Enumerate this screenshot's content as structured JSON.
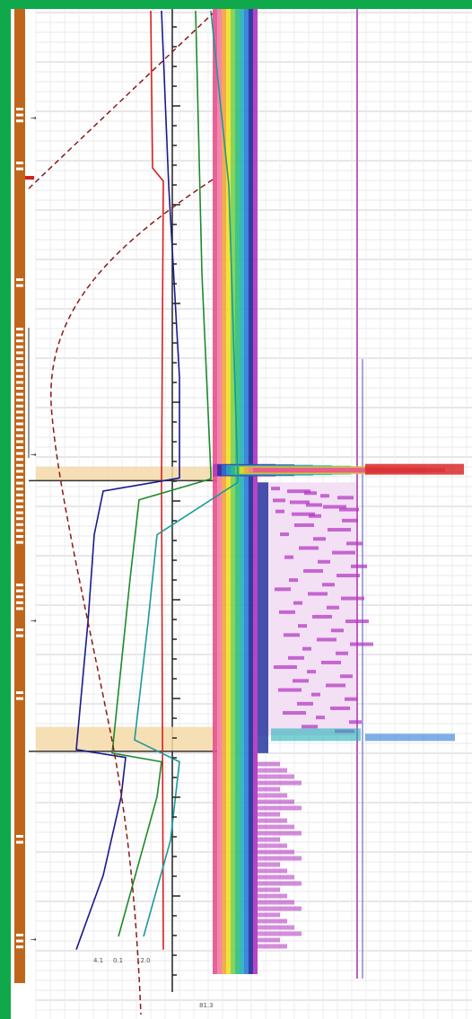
{
  "chart_data": {
    "type": "line",
    "title": "",
    "colors": {
      "background": "#0fa84a",
      "lithology": "#c0661a",
      "zone_highlight": "#f5d9a8",
      "curve_red": "#d62020",
      "curve_navy": "#1a1a8c",
      "curve_green": "#1f8a2a",
      "curve_teal": "#1a9a9a",
      "curve_dashed": "#8b1a1a",
      "vertical_line": "#c060c0"
    },
    "depth_range": [
      0,
      1100
    ],
    "highlighted_zones": [
      {
        "top": 522,
        "bottom": 538
      },
      {
        "top": 820,
        "bottom": 848
      }
    ],
    "series": [
      {
        "color_key": "curve_red",
        "depth": [
          0,
          180,
          195,
          540,
          1075
        ],
        "value": [
          128,
          130,
          142,
          140,
          142
        ]
      },
      {
        "color_key": "curve_navy",
        "depth": [
          0,
          200,
          420,
          535,
          550,
          600,
          700,
          846,
          855,
          900,
          990,
          1075
        ],
        "value": [
          140,
          148,
          160,
          160,
          75,
          65,
          58,
          45,
          100,
          95,
          75,
          45
        ]
      },
      {
        "color_key": "curve_green",
        "depth": [
          0,
          300,
          530,
          536,
          560,
          650,
          850,
          860,
          900,
          1060
        ],
        "value": [
          178,
          185,
          195,
          195,
          115,
          105,
          85,
          140,
          135,
          92
        ]
      },
      {
        "color_key": "curve_teal",
        "depth": [
          0,
          200,
          535,
          540,
          600,
          700,
          835,
          860,
          950,
          1060
        ],
        "value": [
          195,
          215,
          225,
          225,
          135,
          125,
          110,
          160,
          150,
          120
        ]
      }
    ],
    "footer_labels": [
      "4.1",
      "0.1",
      "12.0",
      "81.3"
    ]
  }
}
